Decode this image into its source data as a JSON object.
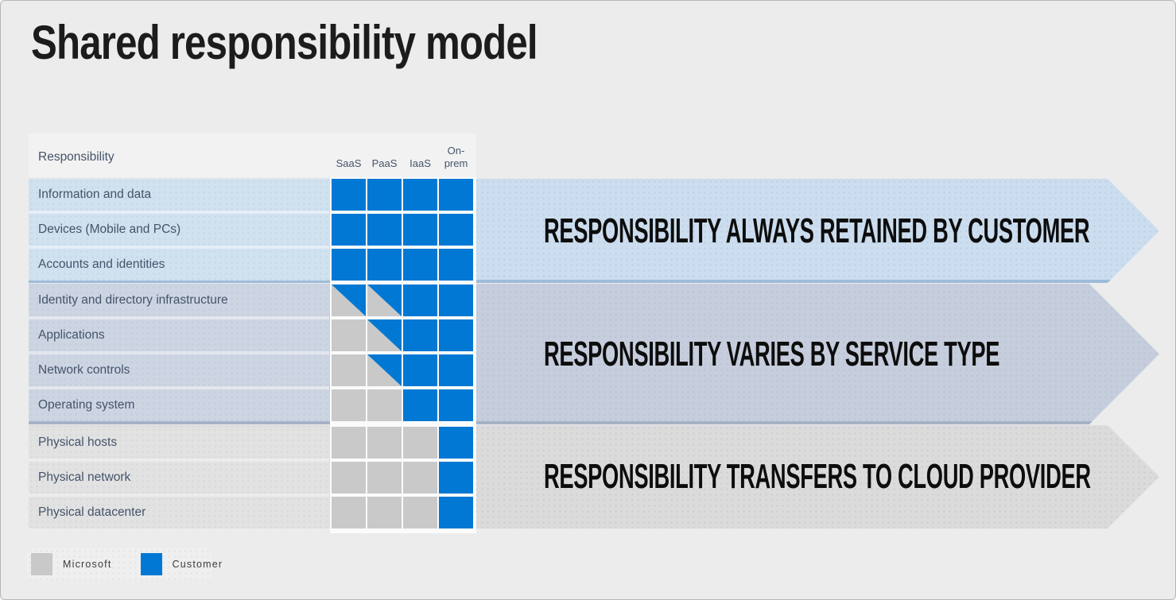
{
  "title": "Shared responsibility model",
  "table": {
    "header_label": "Responsibility",
    "columns": [
      "SaaS",
      "PaaS",
      "IaaS",
      "On-prem"
    ],
    "rows": [
      {
        "label": "Information and data",
        "cells": [
          "customer",
          "customer",
          "customer",
          "customer"
        ]
      },
      {
        "label": "Devices (Mobile and PCs)",
        "cells": [
          "customer",
          "customer",
          "customer",
          "customer"
        ]
      },
      {
        "label": "Accounts and identities",
        "cells": [
          "customer",
          "customer",
          "customer",
          "customer"
        ]
      },
      {
        "label": "Identity and directory infrastructure",
        "cells": [
          "shared",
          "shared",
          "customer",
          "customer"
        ]
      },
      {
        "label": "Applications",
        "cells": [
          "microsoft",
          "shared",
          "customer",
          "customer"
        ]
      },
      {
        "label": "Network controls",
        "cells": [
          "microsoft",
          "shared",
          "customer",
          "customer"
        ]
      },
      {
        "label": "Operating system",
        "cells": [
          "microsoft",
          "microsoft",
          "customer",
          "customer"
        ]
      },
      {
        "label": "Physical hosts",
        "cells": [
          "microsoft",
          "microsoft",
          "microsoft",
          "customer"
        ]
      },
      {
        "label": "Physical network",
        "cells": [
          "microsoft",
          "microsoft",
          "microsoft",
          "customer"
        ]
      },
      {
        "label": "Physical datacenter",
        "cells": [
          "microsoft",
          "microsoft",
          "microsoft",
          "customer"
        ]
      }
    ]
  },
  "bands": [
    {
      "label": "RESPONSIBILITY ALWAYS RETAINED BY CUSTOMER",
      "band_color": "#cbddee",
      "row_color": "#d0e1f0",
      "row_count": 3
    },
    {
      "label": "RESPONSIBILITY VARIES BY SERVICE TYPE",
      "band_color": "#c6cedd",
      "row_color": "#cdd5e3",
      "row_count": 4
    },
    {
      "label": "RESPONSIBILITY TRANSFERS TO CLOUD PROVIDER",
      "band_color": "#dbdbdb",
      "row_color": "#e2e2e2",
      "row_count": 3
    }
  ],
  "legend": {
    "items": [
      {
        "label": "Microsoft",
        "color": "#c9c9c9"
      },
      {
        "label": "Customer",
        "color": "#0078d4"
      }
    ]
  },
  "colors": {
    "customer_blue": "#0078d4",
    "microsoft_gray": "#c9c9c9",
    "background": "#ececec"
  }
}
